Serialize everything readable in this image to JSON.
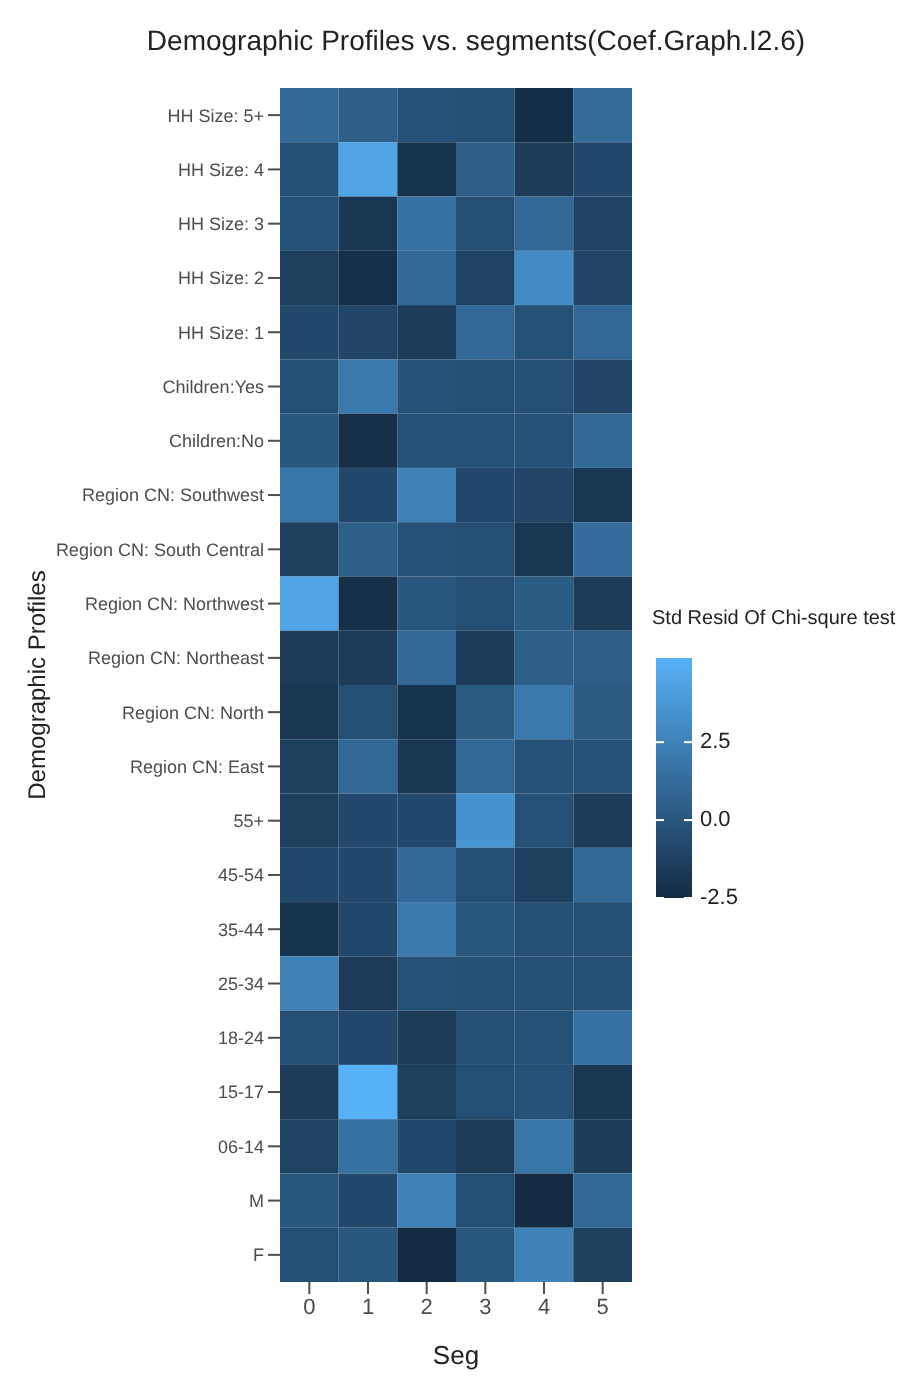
{
  "chart_data": {
    "type": "heatmap",
    "title": "Demographic Profiles vs. segments(Coef.Graph.I2.6)",
    "xlabel": "Seg",
    "ylabel": "Demographic Profiles",
    "clabel": "Std Resid Of Chi-squre test",
    "categories": [
      "0",
      "1",
      "2",
      "3",
      "4",
      "5"
    ],
    "y_categories": [
      "HH Size: 5+",
      "HH Size: 4",
      "HH Size: 3",
      "HH Size: 2",
      "HH Size: 1",
      "Children:Yes",
      "Children:No",
      "Region CN: Southwest",
      "Region CN: South Central",
      "Region CN: Northwest",
      "Region CN: Northeast",
      "Region CN: North",
      "Region CN: East",
      "55+",
      "45-54",
      "35-44",
      "25-34",
      "18-24",
      "15-17",
      "06-14",
      "M",
      "F"
    ],
    "cells": [
      [
        1.0,
        0.5,
        -0.3,
        -0.5,
        -2.3,
        1.2
      ],
      [
        -0.5,
        4.5,
        -2.0,
        0.5,
        -1.5,
        -0.8
      ],
      [
        -0.3,
        -1.8,
        1.5,
        -0.5,
        1.0,
        -1.2
      ],
      [
        -1.3,
        -2.2,
        1.0,
        -1.2,
        3.0,
        -1.0
      ],
      [
        -0.8,
        -1.0,
        -1.5,
        1.0,
        -0.3,
        1.0
      ],
      [
        -0.5,
        2.0,
        -0.3,
        -0.5,
        -0.5,
        -1.0
      ],
      [
        0.0,
        -2.2,
        -0.3,
        -0.3,
        -0.3,
        1.0
      ],
      [
        1.8,
        -0.8,
        2.5,
        -0.8,
        -1.0,
        -1.8
      ],
      [
        -1.3,
        0.5,
        -0.3,
        -0.5,
        -1.8,
        1.3
      ],
      [
        4.5,
        -2.2,
        0.0,
        -0.5,
        0.3,
        -1.5
      ],
      [
        -1.5,
        -1.5,
        1.0,
        -1.5,
        0.5,
        0.5
      ],
      [
        -1.8,
        -0.5,
        -2.0,
        0.3,
        2.0,
        0.3
      ],
      [
        -1.3,
        1.0,
        -1.8,
        1.0,
        -0.3,
        -0.3
      ],
      [
        -1.3,
        -0.8,
        -0.8,
        3.5,
        -0.3,
        -1.5
      ],
      [
        -0.8,
        -0.8,
        1.0,
        -0.5,
        -1.3,
        1.0
      ],
      [
        -2.0,
        -0.8,
        2.0,
        0.0,
        -0.5,
        -0.5
      ],
      [
        2.5,
        -1.5,
        -0.3,
        -0.5,
        -0.5,
        -0.5
      ],
      [
        -0.5,
        -0.8,
        -1.5,
        -0.5,
        -0.3,
        1.5
      ],
      [
        -1.5,
        5.2,
        -1.3,
        -0.5,
        -0.3,
        -1.8
      ],
      [
        -1.2,
        1.5,
        -0.8,
        -1.5,
        1.8,
        -1.5
      ],
      [
        0.0,
        -0.8,
        2.5,
        -0.5,
        -2.5,
        1.0
      ],
      [
        -0.5,
        0.0,
        -2.5,
        0.0,
        2.5,
        -1.3
      ]
    ],
    "clim": [
      -2.5,
      5.2
    ],
    "cticks": [
      {
        "value": -2.5,
        "label": "-2.5"
      },
      {
        "value": 0,
        "label": "0.0"
      },
      2.5
    ]
  }
}
